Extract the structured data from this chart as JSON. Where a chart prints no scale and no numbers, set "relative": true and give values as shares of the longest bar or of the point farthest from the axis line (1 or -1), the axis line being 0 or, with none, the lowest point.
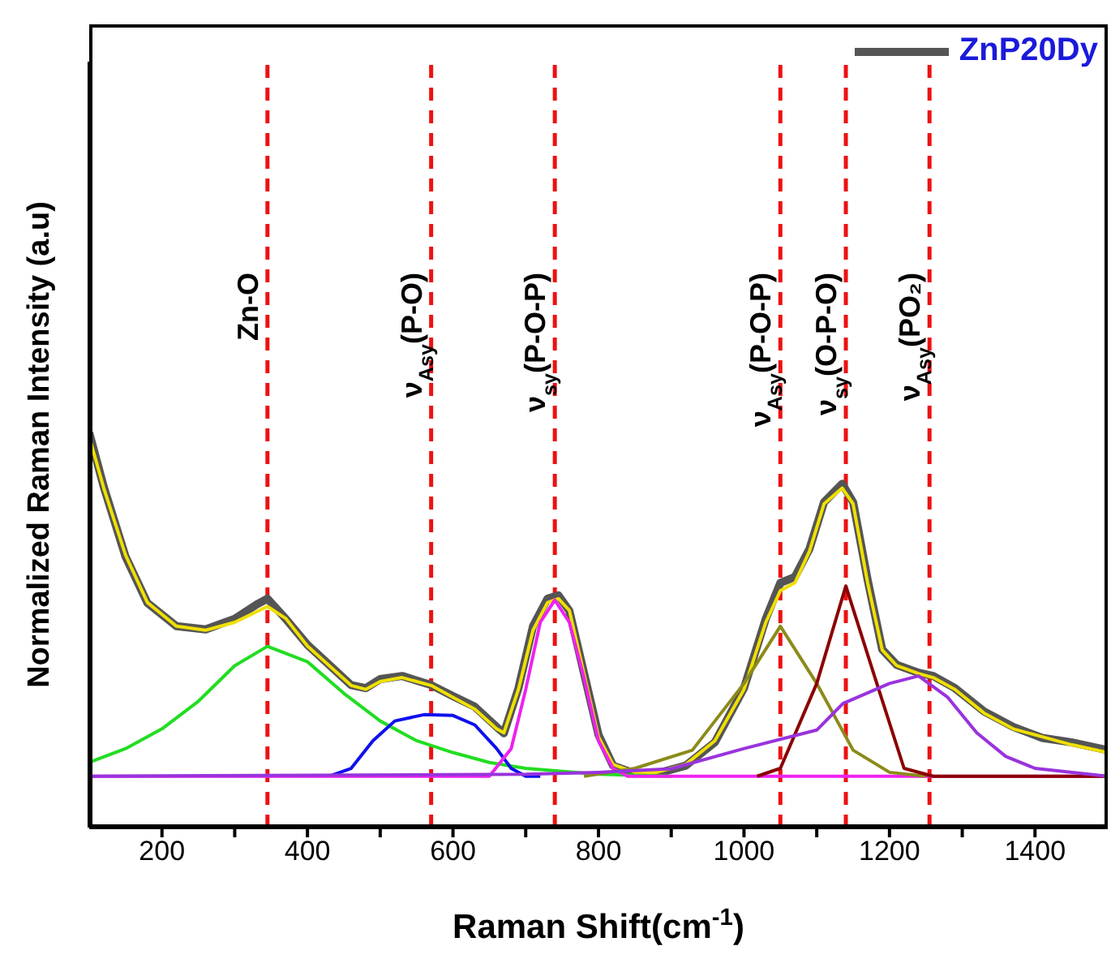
{
  "chart_data": {
    "type": "line",
    "relative": true,
    "xlabel": "Raman Shift(cm$^{-1}$)",
    "ylabel": "Normalized Raman Intensity (a.u)",
    "xlim": [
      100,
      1500
    ],
    "xticks": [
      200,
      {
        "value": 300,
        "label": null
      },
      400,
      {
        "value": 500,
        "label": null
      },
      600,
      {
        "value": 700,
        "label": null
      },
      800,
      {
        "value": 900,
        "label": null
      },
      1000,
      {
        "value": 1100,
        "label": null
      },
      1200,
      {
        "value": 1300,
        "label": null
      },
      1400
    ],
    "legend": "top right",
    "grid": false,
    "marker": "none",
    "line_style": "solid",
    "series": [
      {
        "name": "ZnP20Dy",
        "color": "#555555",
        "x": [
          100,
          120,
          150,
          180,
          220,
          260,
          300,
          330,
          345,
          370,
          400,
          430,
          460,
          480,
          500,
          530,
          570,
          600,
          630,
          660,
          670,
          690,
          710,
          730,
          745,
          760,
          780,
          800,
          820,
          850,
          880,
          920,
          960,
          1000,
          1030,
          1050,
          1070,
          1090,
          1110,
          1135,
          1150,
          1170,
          1190,
          1210,
          1240,
          1260,
          1290,
          1330,
          1370,
          1410,
          1450,
          1500
        ],
        "values": [
          1.0,
          0.863,
          0.686,
          0.569,
          0.51,
          0.502,
          0.529,
          0.565,
          0.58,
          0.529,
          0.463,
          0.412,
          0.361,
          0.353,
          0.376,
          0.384,
          0.361,
          0.333,
          0.306,
          0.255,
          0.239,
          0.353,
          0.51,
          0.58,
          0.588,
          0.549,
          0.392,
          0.235,
          0.157,
          0.137,
          0.137,
          0.157,
          0.216,
          0.353,
          0.529,
          0.62,
          0.635,
          0.706,
          0.824,
          0.871,
          0.824,
          0.627,
          0.451,
          0.412,
          0.392,
          0.384,
          0.353,
          0.294,
          0.255,
          0.227,
          0.216,
          0.196
        ]
      },
      {
        "color": "#f0e000",
        "x": [
          100,
          120,
          150,
          180,
          220,
          260,
          300,
          345,
          370,
          400,
          430,
          460,
          480,
          500,
          530,
          570,
          600,
          630,
          660,
          670,
          690,
          710,
          730,
          745,
          760,
          780,
          800,
          820,
          850,
          880,
          920,
          960,
          1000,
          1030,
          1050,
          1070,
          1090,
          1110,
          1135,
          1150,
          1170,
          1190,
          1210,
          1240,
          1260,
          1290,
          1330,
          1370,
          1410,
          1450,
          1500
        ],
        "values": [
          0.99,
          0.86,
          0.69,
          0.57,
          0.51,
          0.5,
          0.52,
          0.56,
          0.53,
          0.46,
          0.41,
          0.36,
          0.35,
          0.37,
          0.38,
          0.36,
          0.33,
          0.3,
          0.25,
          0.24,
          0.35,
          0.5,
          0.57,
          0.58,
          0.55,
          0.39,
          0.23,
          0.16,
          0.14,
          0.14,
          0.16,
          0.22,
          0.35,
          0.52,
          0.6,
          0.62,
          0.7,
          0.82,
          0.86,
          0.82,
          0.62,
          0.45,
          0.41,
          0.39,
          0.38,
          0.35,
          0.29,
          0.25,
          0.23,
          0.21,
          0.19
        ]
      },
      {
        "color": "#22dd22",
        "x": [
          100,
          150,
          200,
          250,
          300,
          345,
          400,
          450,
          500,
          550,
          600,
          650,
          700,
          800,
          900
        ],
        "values": [
          0.165,
          0.2,
          0.25,
          0.32,
          0.41,
          0.459,
          0.42,
          0.34,
          0.27,
          0.22,
          0.19,
          0.165,
          0.15,
          0.135,
          0.13
        ]
      },
      {
        "color": "#1010ee",
        "x": [
          430,
          460,
          490,
          520,
          560,
          600,
          630,
          660,
          680,
          700,
          720
        ],
        "values": [
          0.13,
          0.15,
          0.22,
          0.27,
          0.286,
          0.284,
          0.26,
          0.2,
          0.15,
          0.13,
          0.13
        ]
      },
      {
        "color": "#ee22ee",
        "x": [
          100,
          650,
          680,
          700,
          720,
          740,
          760,
          780,
          800,
          820,
          840,
          1500
        ],
        "values": [
          0.13,
          0.13,
          0.2,
          0.35,
          0.52,
          0.576,
          0.52,
          0.38,
          0.22,
          0.15,
          0.13,
          0.13
        ]
      },
      {
        "color": "#8b8b1a",
        "x": [
          780,
          850,
          929,
          1000,
          1050,
          1100,
          1150,
          1200,
          1250
        ],
        "values": [
          0.13,
          0.15,
          0.196,
          0.365,
          0.51,
          0.365,
          0.196,
          0.14,
          0.13
        ]
      },
      {
        "color": "#8b0000",
        "x": [
          1018,
          1050,
          1100,
          1140,
          1180,
          1220,
          1260,
          1500
        ],
        "values": [
          0.13,
          0.15,
          0.365,
          0.612,
          0.38,
          0.15,
          0.13,
          0.13
        ]
      },
      {
        "color": "#9933dd",
        "x": [
          100,
          700,
          800,
          900,
          1000,
          1100,
          1136,
          1200,
          1240,
          1280,
          1320,
          1360,
          1400,
          1500
        ],
        "values": [
          0.13,
          0.135,
          0.14,
          0.149,
          0.2,
          0.247,
          0.314,
          0.365,
          0.384,
          0.33,
          0.24,
          0.18,
          0.15,
          0.13
        ]
      }
    ],
    "ref_lines": [
      {
        "axis": "x",
        "value": 345,
        "label": "Zn-O",
        "color": "#ee1111",
        "line_style": "dashed"
      },
      {
        "axis": "x",
        "value": 570,
        "label": "ν$_{Asy}$(P-O)",
        "color": "#ee1111",
        "line_style": "dashed"
      },
      {
        "axis": "x",
        "value": 740,
        "label": "ν$_{sy}$(P-O-P)",
        "color": "#ee1111",
        "line_style": "dashed"
      },
      {
        "axis": "x",
        "value": 1050,
        "label": "ν$_{Asy}$(P-O-P)",
        "color": "#ee1111",
        "line_style": "dashed"
      },
      {
        "axis": "x",
        "value": 1140,
        "label": "ν$_{sy}$(O-P-O)",
        "color": "#ee1111",
        "line_style": "dashed"
      },
      {
        "axis": "x",
        "value": 1255,
        "label": "ν$_{Asy}$(PO₂)",
        "color": "#ee1111",
        "line_style": "dashed"
      }
    ]
  }
}
